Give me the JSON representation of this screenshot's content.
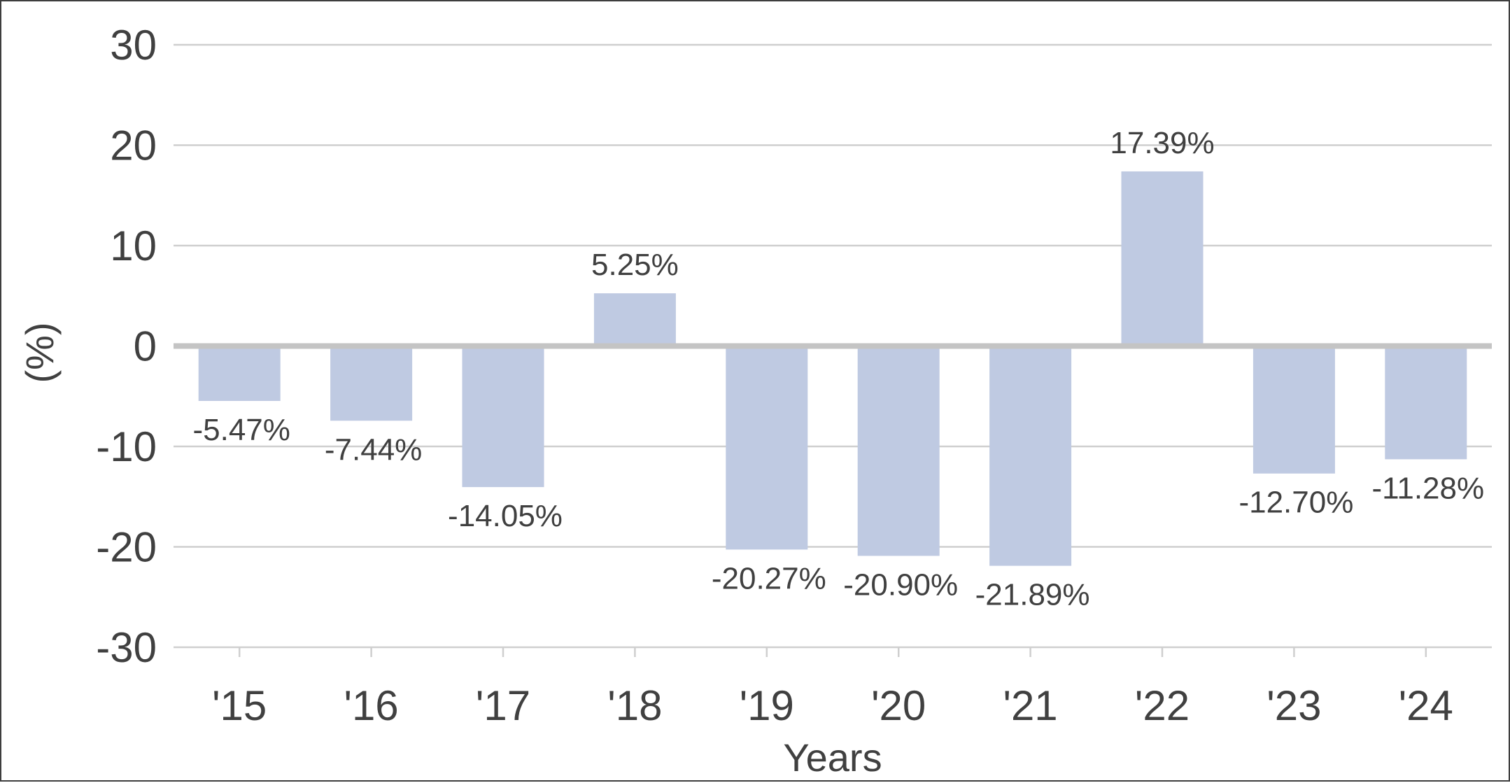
{
  "chart_data": {
    "type": "bar",
    "title": "",
    "xlabel": "Years",
    "ylabel": "(%)",
    "categories": [
      "'15",
      "'16",
      "'17",
      "'18",
      "'19",
      "'20",
      "'21",
      "'22",
      "'23",
      "'24"
    ],
    "series": [
      {
        "values": [
          -5.47,
          -7.44,
          -14.05,
          5.25,
          -20.27,
          -20.9,
          -21.89,
          17.39,
          -12.7,
          -11.28
        ],
        "labels": [
          "-5.47%",
          "-7.44%",
          "-14.05%",
          "5.25%",
          "-20.27%",
          "-20.90%",
          "-21.89%",
          "17.39%",
          "-12.70%",
          "-11.28%"
        ],
        "color": "#bfcae2"
      }
    ],
    "ylim": [
      -30,
      30
    ],
    "yticks": [
      "30",
      "20",
      "10",
      "0",
      "-10",
      "-20",
      "-30"
    ],
    "ytick_values": [
      30,
      20,
      10,
      0,
      -10,
      -20,
      -30
    ],
    "grid": true,
    "legend": "none"
  },
  "colors": {
    "bar": "#bfcae2",
    "grid": "#cfcfcf",
    "zero_line": "#c4c4c4",
    "text": "#404040",
    "border": "#3d3d3d"
  }
}
